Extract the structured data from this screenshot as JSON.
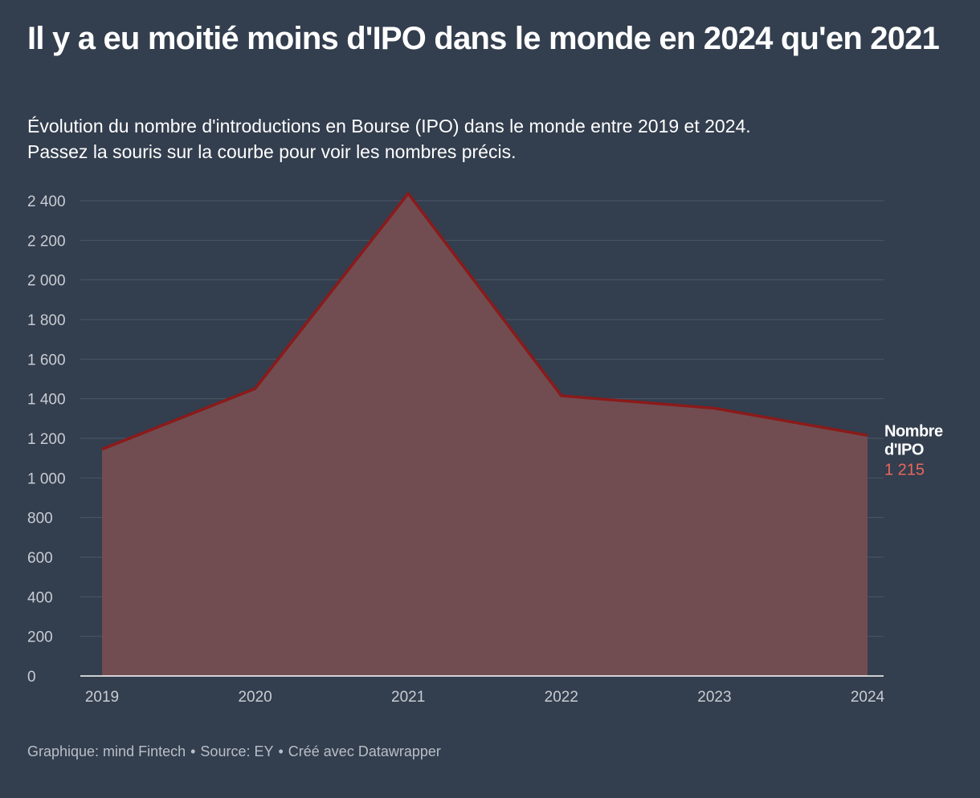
{
  "header": {
    "title": "Il y a eu moitié moins d'IPO dans le monde en 2024 qu'en 2021",
    "subtitle_line1": "Évolution du nombre d'introductions en Bourse (IPO) dans le monde entre 2019 et 2024.",
    "subtitle_line2": "Passez la souris sur la courbe pour voir les nombres précis."
  },
  "footer": {
    "graphic": "Graphique: mind Fintech",
    "source": "Source: EY",
    "created": "Créé avec Datawrapper",
    "separator": "•"
  },
  "chart_data": {
    "type": "area",
    "x": [
      "2019",
      "2020",
      "2021",
      "2022",
      "2023",
      "2024"
    ],
    "series": [
      {
        "name": "Nombre d'IPO",
        "values": [
          1145,
          1451,
          2436,
          1415,
          1352,
          1215
        ]
      }
    ],
    "ylim": [
      0,
      2400
    ],
    "yticks": [
      0,
      200,
      400,
      600,
      800,
      1000,
      1200,
      1400,
      1600,
      1800,
      2000,
      2200,
      2400
    ],
    "ytick_labels": [
      "0",
      "200",
      "400",
      "600",
      "800",
      "1 000",
      "1 200",
      "1 400",
      "1 600",
      "1 800",
      "2 000",
      "2 200",
      "2 400"
    ],
    "series_label_line1": "Nombre",
    "series_label_line2": "d'IPO",
    "last_value_label": "1 215",
    "grid": true,
    "colors": {
      "line": "#8b1a1a",
      "fill": "#714d51",
      "grid": "#4d5766",
      "tick_text": "#c8ccd3",
      "value_label": "#e9675c"
    }
  }
}
